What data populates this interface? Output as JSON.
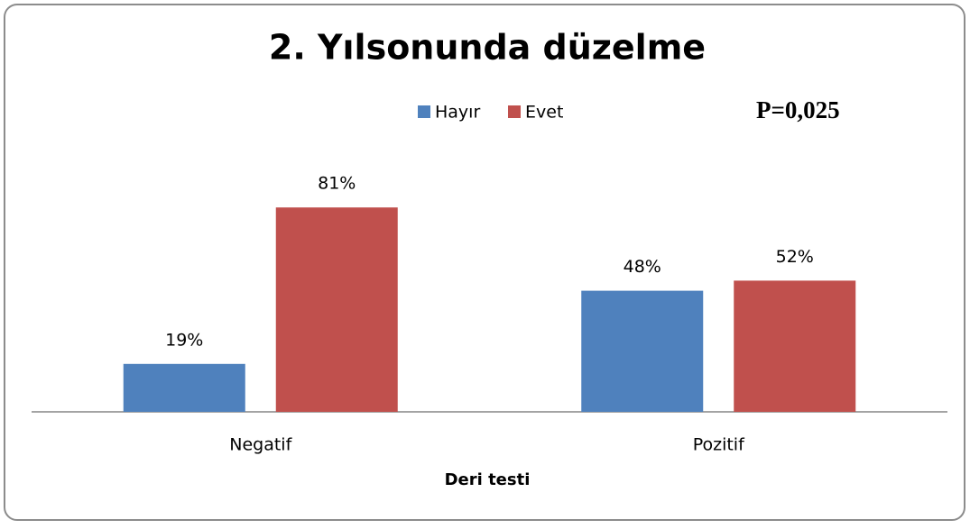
{
  "chart_data": {
    "type": "bar",
    "title": "2. Yılsonunda düzelme",
    "annotation": "P=0,025",
    "x_label": "Deri testi",
    "categories": [
      "Negatif",
      "Pozitif"
    ],
    "series": [
      {
        "name": "Hayır",
        "color": "#4f81bd",
        "values": [
          19,
          48
        ],
        "value_labels": [
          "19%",
          "48%"
        ]
      },
      {
        "name": "Evet",
        "color": "#c0504d",
        "values": [
          81,
          52
        ],
        "value_labels": [
          "81%",
          "52%"
        ]
      }
    ],
    "legend": "top"
  }
}
